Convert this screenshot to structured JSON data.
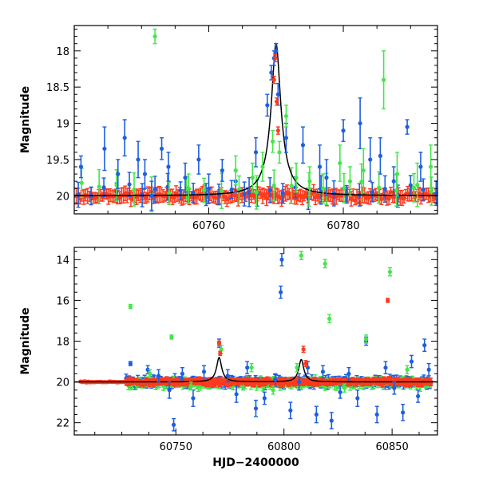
{
  "colors": {
    "blue": "#1e5fe0",
    "green": "#44e64a",
    "red": "#ff3a1e",
    "model": "#000000",
    "axis": "#000000"
  },
  "chart_data": [
    {
      "type": "scatter",
      "title": "",
      "xlabel": "",
      "ylabel": "Magnitude",
      "xlim": [
        60740,
        60794
      ],
      "ylim": [
        20.25,
        17.65
      ],
      "y_inverted": true,
      "grid": false,
      "x_ticks": [
        60760,
        60780
      ],
      "y_ticks": [
        18,
        18.5,
        19,
        19.5,
        20
      ],
      "series": [
        {
          "color": "blue",
          "x": [
            60741,
            60744.5,
            60746.5,
            60747.5,
            60749.5,
            60750.5,
            60751.5,
            60753,
            60754,
            60756.5,
            60758.5,
            60760,
            60762,
            60764,
            60766,
            60767,
            60768.7,
            60769.3,
            60769.7,
            60770.0,
            60770.3,
            60771.5,
            60774,
            60776.5,
            60777.5,
            60780,
            60782.5,
            60784,
            60785.5,
            60787.5,
            60789.5,
            60791.5
          ],
          "y": [
            19.6,
            19.35,
            19.7,
            19.2,
            19.5,
            19.7,
            20.0,
            19.35,
            19.6,
            19.75,
            19.5,
            19.9,
            19.65,
            19.8,
            19.95,
            19.4,
            18.75,
            18.3,
            18.1,
            18.0,
            18.6,
            19.2,
            19.3,
            19.6,
            19.75,
            19.1,
            19.0,
            19.5,
            19.45,
            19.8,
            19.05,
            19.6
          ],
          "err": [
            0.15,
            0.3,
            0.2,
            0.25,
            0.25,
            0.2,
            0.2,
            0.15,
            0.2,
            0.2,
            0.2,
            0.2,
            0.15,
            0.15,
            0.2,
            0.2,
            0.15,
            0.1,
            0.1,
            0.1,
            0.15,
            0.2,
            0.25,
            0.3,
            0.25,
            0.15,
            0.35,
            0.3,
            0.25,
            0.2,
            0.1,
            0.2
          ]
        },
        {
          "color": "green",
          "x": [
            60752,
            60757,
            60764,
            60766.5,
            60768,
            60769.5,
            60770.5,
            60771.5,
            60773,
            60775,
            60777,
            60779.5,
            60781,
            60783,
            60786,
            60788,
            60791,
            60793
          ],
          "y": [
            17.8,
            19.9,
            19.65,
            19.75,
            19.6,
            19.25,
            19.4,
            18.9,
            19.75,
            19.8,
            19.9,
            19.55,
            19.8,
            19.65,
            18.4,
            19.7,
            19.85,
            19.6
          ],
          "err": [
            0.1,
            0.2,
            0.2,
            0.2,
            0.2,
            0.15,
            0.15,
            0.15,
            0.2,
            0.2,
            0.2,
            0.25,
            0.2,
            0.3,
            0.4,
            0.3,
            0.3,
            0.3
          ]
        },
        {
          "color": "red",
          "x": [
            60769.7,
            60769.9,
            60770.1,
            60770.3
          ],
          "y": [
            18.4,
            18.1,
            18.7,
            19.1
          ],
          "err": [
            0.05,
            0.05,
            0.05,
            0.05
          ]
        }
      ],
      "model_peak": {
        "x": 60770,
        "baseline_mag": 20.0,
        "peak_mag": 17.9
      }
    },
    {
      "type": "scatter",
      "title": "",
      "xlabel": "HJD−2400000",
      "ylabel": "Magnitude",
      "xlim": [
        60703,
        60871
      ],
      "ylim": [
        22.6,
        13.4
      ],
      "y_inverted": true,
      "grid": false,
      "x_ticks": [
        60750,
        60800,
        60850
      ],
      "y_ticks": [
        14,
        16,
        18,
        20,
        22
      ],
      "series": [
        {
          "color": "blue",
          "x": [
            60729,
            60737,
            60742,
            60747,
            60749,
            60753,
            60758,
            60763,
            60770,
            60774,
            60778,
            60783,
            60787,
            60791,
            60796,
            60798.5,
            60799,
            60803,
            60807,
            60811,
            60815,
            60818,
            60822,
            60826,
            60830,
            60834,
            60838,
            60843,
            60847,
            60851,
            60855,
            60859,
            60862,
            60865,
            60867
          ],
          "y": [
            19.1,
            19.4,
            19.7,
            20.4,
            22.1,
            19.6,
            20.8,
            19.5,
            18.1,
            19.7,
            20.6,
            19.3,
            21.3,
            20.8,
            19.9,
            15.6,
            14.0,
            21.4,
            20.0,
            19.3,
            21.6,
            19.5,
            21.9,
            20.5,
            19.6,
            20.8,
            18.0,
            21.6,
            19.3,
            20.3,
            21.5,
            19.0,
            20.7,
            18.2,
            19.4
          ],
          "err": [
            0.1,
            0.2,
            0.3,
            0.4,
            0.3,
            0.3,
            0.4,
            0.3,
            0.2,
            0.3,
            0.4,
            0.3,
            0.4,
            0.3,
            0.3,
            0.3,
            0.3,
            0.4,
            0.4,
            0.3,
            0.4,
            0.3,
            0.4,
            0.3,
            0.3,
            0.4,
            0.2,
            0.4,
            0.3,
            0.3,
            0.4,
            0.3,
            0.3,
            0.3,
            0.3
          ]
        },
        {
          "color": "green",
          "x": [
            60729,
            60738,
            60748,
            60757,
            60771,
            60785,
            60795,
            60806,
            60808,
            60819,
            60821,
            60828,
            60838,
            60849,
            60857
          ],
          "y": [
            16.3,
            19.6,
            17.8,
            20.2,
            18.4,
            19.3,
            20.4,
            19.3,
            13.8,
            14.2,
            16.9,
            20.3,
            17.9,
            14.6,
            19.4
          ],
          "err": [
            0.1,
            0.2,
            0.1,
            0.2,
            0.2,
            0.2,
            0.2,
            0.2,
            0.2,
            0.2,
            0.2,
            0.2,
            0.2,
            0.2,
            0.2
          ]
        },
        {
          "color": "red",
          "x": [
            60770,
            60770.5,
            60809,
            60810,
            60848
          ],
          "y": [
            18.1,
            18.6,
            18.4,
            19.1,
            16.0
          ],
          "err": [
            0.1,
            0.1,
            0.15,
            0.15,
            0.1
          ]
        }
      ],
      "model_peaks": [
        {
          "x": 60770,
          "baseline_mag": 20.0,
          "peak_mag": 18.8
        },
        {
          "x": 60808,
          "baseline_mag": 20.0,
          "peak_mag": 18.9
        }
      ]
    }
  ]
}
